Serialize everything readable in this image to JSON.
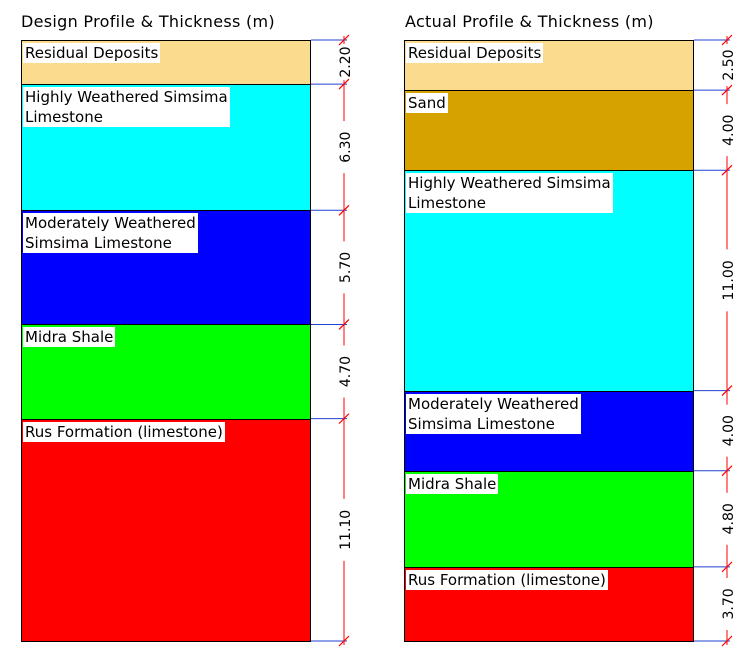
{
  "design": {
    "title": "Design Profile & Thickness (m)",
    "layers": [
      {
        "name": "Residual Deposits",
        "thickness": 2.2,
        "label": "2.20",
        "color": "#FBDB8D"
      },
      {
        "name": "Highly Weathered Simsima\nLimestone",
        "thickness": 6.3,
        "label": "6.30",
        "color": "#00FFFF"
      },
      {
        "name": "Moderately Weathered\nSimsima Limestone",
        "thickness": 5.7,
        "label": "5.70",
        "color": "#0000FF"
      },
      {
        "name": "Midra Shale",
        "thickness": 4.7,
        "label": "4.70",
        "color": "#00FF00"
      },
      {
        "name": "Rus Formation (limestone)",
        "thickness": 11.1,
        "label": "11.10",
        "color": "#FF0000"
      }
    ]
  },
  "actual": {
    "title": "Actual Profile & Thickness (m)",
    "layers": [
      {
        "name": "Residual Deposits",
        "thickness": 2.5,
        "label": "2.50",
        "color": "#FBDB8D"
      },
      {
        "name": "Sand",
        "thickness": 4.0,
        "label": "4.00",
        "color": "#D6A200"
      },
      {
        "name": "Highly Weathered Simsima\nLimestone",
        "thickness": 11.0,
        "label": "11.00",
        "color": "#00FFFF"
      },
      {
        "name": "Moderately Weathered\nSimsima Limestone",
        "thickness": 4.0,
        "label": "4.00",
        "color": "#0000FF"
      },
      {
        "name": "Midra Shale",
        "thickness": 4.8,
        "label": "4.80",
        "color": "#00FF00"
      },
      {
        "name": "Rus Formation (limestone)",
        "thickness": 3.7,
        "label": "3.70",
        "color": "#FF0000"
      }
    ]
  }
}
